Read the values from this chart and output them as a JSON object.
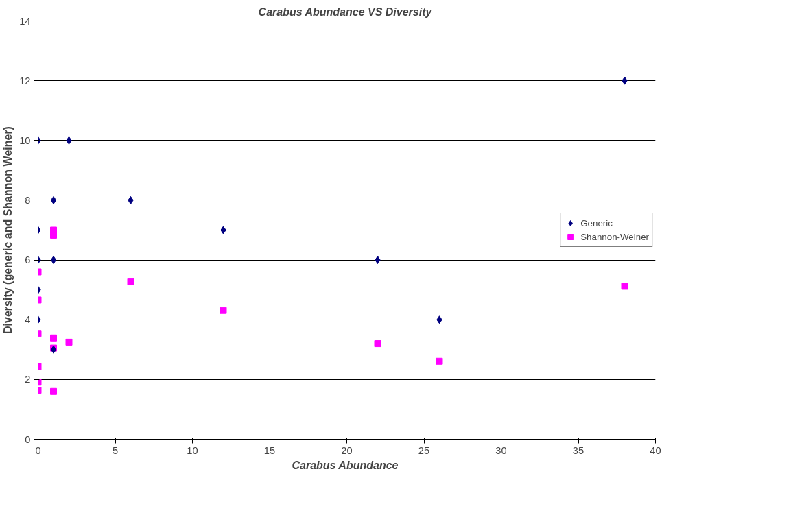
{
  "chart_data": {
    "type": "scatter",
    "title": "Carabus  Abundance VS Diversity",
    "xlabel": "Carabus  Abundance",
    "ylabel": "Diversity (generic and Shannon Weiner)",
    "xlim": [
      0,
      40
    ],
    "xticks": [
      0,
      5,
      10,
      15,
      20,
      25,
      30,
      35,
      40
    ],
    "ylim": [
      0,
      14
    ],
    "yticks": [
      0,
      2,
      4,
      6,
      8,
      10,
      12,
      14
    ],
    "grid": "y",
    "legend": "right",
    "series": [
      {
        "name": "Generic",
        "color": "#000080",
        "marker": "diamond",
        "x": [
          0,
          0,
          0,
          0,
          0,
          1,
          1,
          1,
          2,
          6,
          12,
          22,
          26,
          38
        ],
        "values": [
          10,
          7,
          6,
          5,
          4,
          8,
          6,
          3,
          10,
          8,
          7,
          6,
          4,
          12
        ]
      },
      {
        "name": "Shannon-Weiner",
        "color": "#ff00ff",
        "marker": "square",
        "x": [
          0,
          0,
          0,
          0,
          0,
          0,
          1,
          1,
          1,
          1,
          1,
          2,
          6,
          12,
          22,
          26,
          38
        ],
        "values": [
          5.6,
          4.66,
          3.54,
          2.43,
          1.91,
          1.64,
          7.0,
          6.83,
          3.39,
          3.05,
          1.6,
          3.25,
          5.27,
          4.31,
          3.2,
          2.61,
          5.12
        ]
      }
    ]
  }
}
